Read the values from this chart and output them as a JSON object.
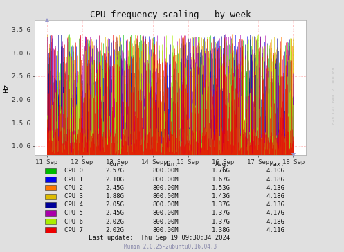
{
  "title": "CPU frequency scaling - by week",
  "ylabel": "Hz",
  "background_color": "#e0e0e0",
  "plot_bg_color": "#ffffff",
  "grid_color": "#ffaaaa",
  "yticks": [
    1000000000,
    1500000000,
    2000000000,
    2500000000,
    3000000000,
    3500000000
  ],
  "ytick_labels": [
    "1.0 G",
    "1.5 G",
    "2.0 G",
    "2.5 G",
    "3.0 G",
    "3.5 G"
  ],
  "ylim_low": 800000000,
  "ylim_high": 3700000000,
  "xtick_labels": [
    "11 Sep",
    "12 Sep",
    "13 Sep",
    "14 Sep",
    "15 Sep",
    "16 Sep",
    "17 Sep",
    "18 Sep"
  ],
  "cpu_colors": [
    "#00bb00",
    "#0000ee",
    "#ff7700",
    "#ddbb00",
    "#000099",
    "#aa00aa",
    "#aaee00",
    "#ee0000"
  ],
  "cpu_names": [
    "CPU 0",
    "CPU 1",
    "CPU 2",
    "CPU 3",
    "CPU 4",
    "CPU 5",
    "CPU 6",
    "CPU 7"
  ],
  "cur_values": [
    "2.57G",
    "2.10G",
    "2.45G",
    "1.88G",
    "2.05G",
    "2.45G",
    "2.02G",
    "2.02G"
  ],
  "min_values": [
    "800.00M",
    "800.00M",
    "800.00M",
    "800.00M",
    "800.00M",
    "800.00M",
    "800.00M",
    "800.00M"
  ],
  "avg_values": [
    "1.76G",
    "1.67G",
    "1.53G",
    "1.43G",
    "1.37G",
    "1.37G",
    "1.37G",
    "1.38G"
  ],
  "max_values": [
    "4.10G",
    "4.18G",
    "4.13G",
    "4.18G",
    "4.13G",
    "4.17G",
    "4.18G",
    "4.11G"
  ],
  "last_update": "Thu Sep 19 09:30:34 2024",
  "munin_version": "Munin 2.0.25-2ubuntu0.16.04.3",
  "watermark": "RRDTOOL / TOBI OETIKER",
  "seed": 42,
  "n_points": 700
}
